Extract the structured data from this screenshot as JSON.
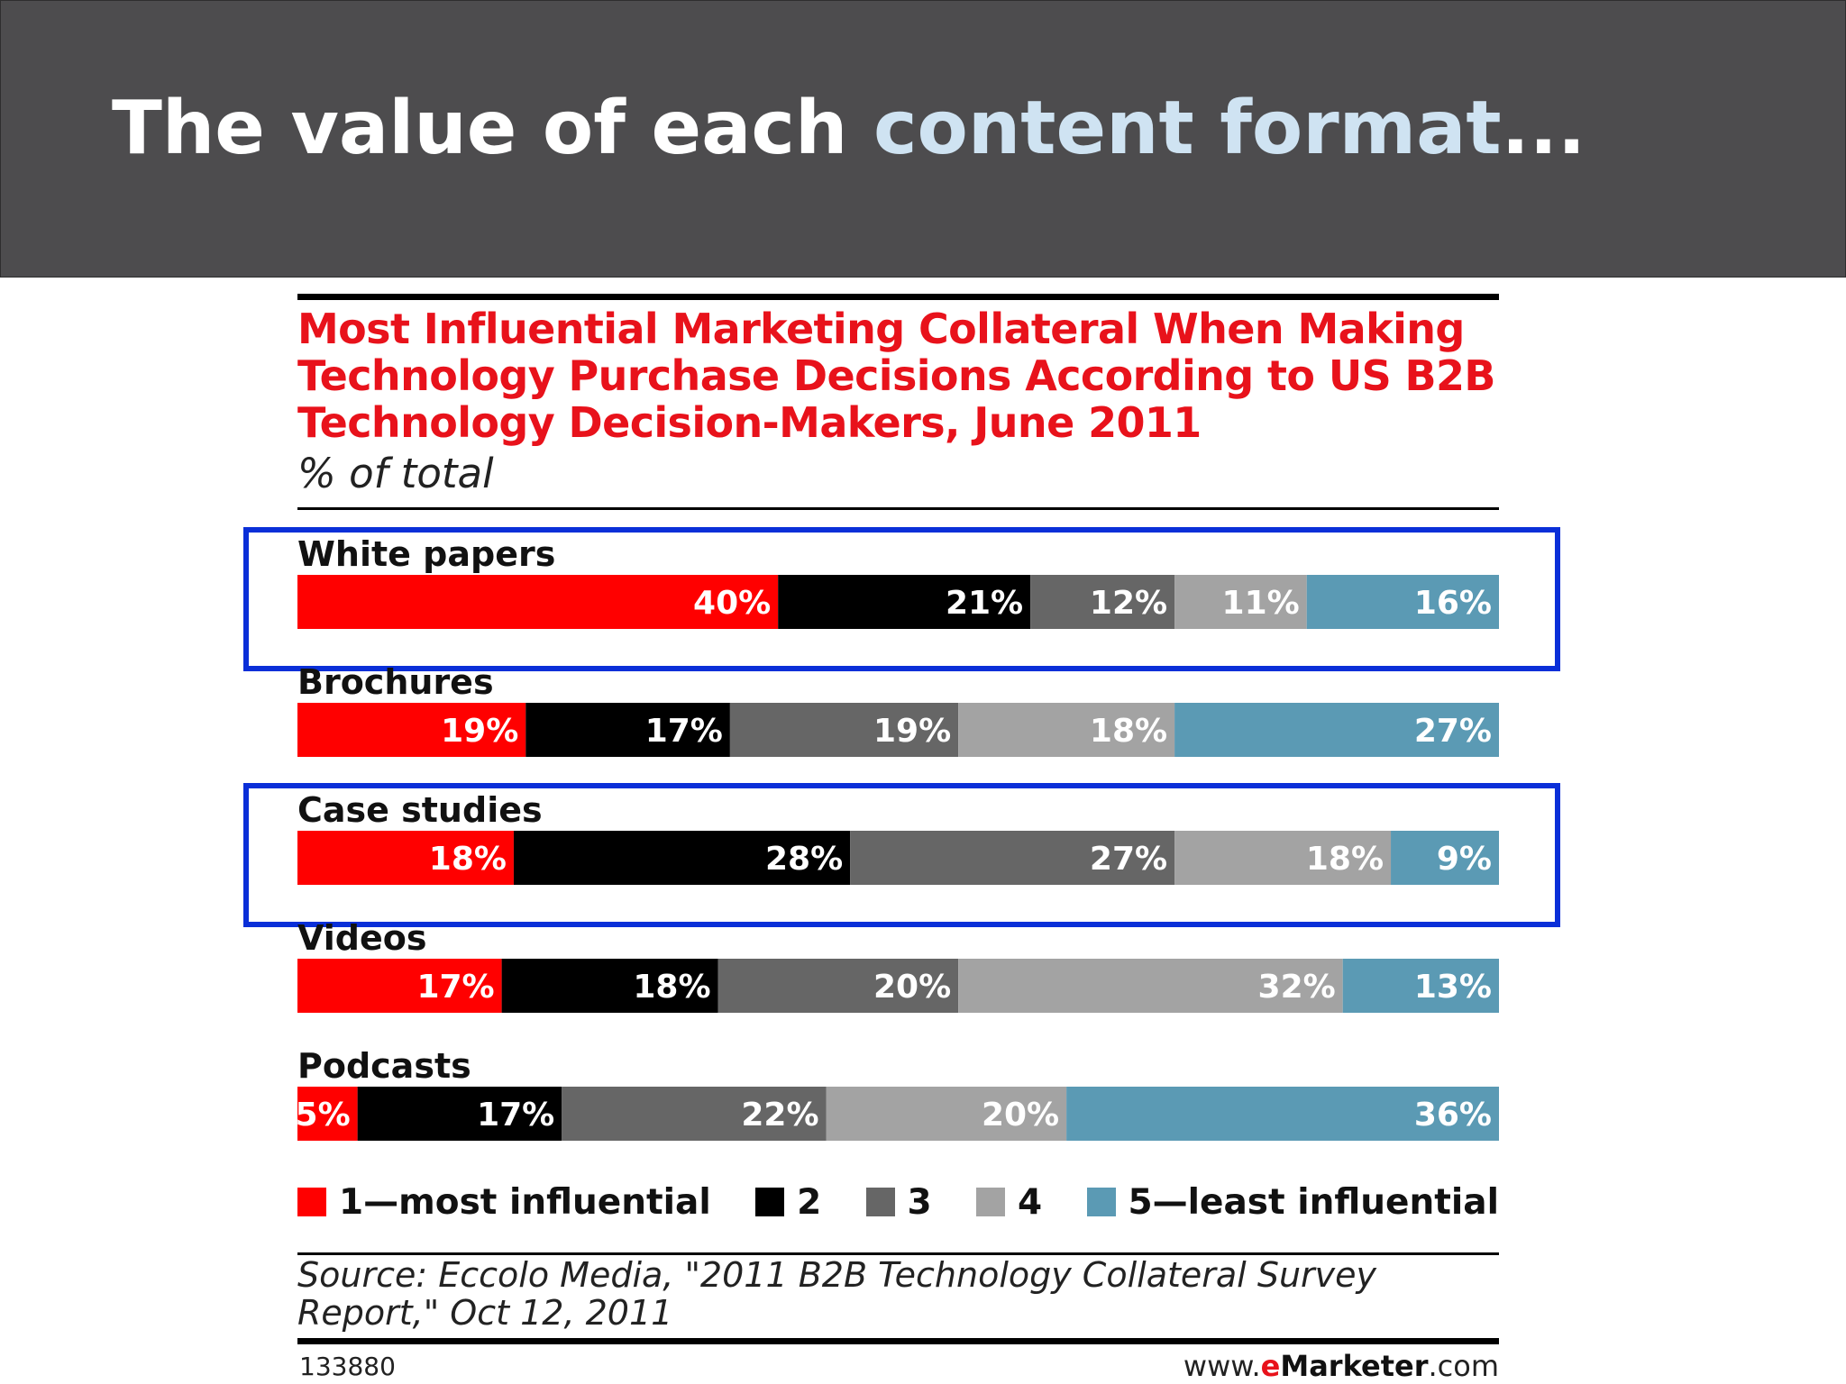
{
  "slide": {
    "title_lead": "The value of each ",
    "title_highlight": "content format",
    "title_tail": "..."
  },
  "chart_data": {
    "type": "bar",
    "stacked": "100%",
    "orientation": "horizontal",
    "title": "Most Influential Marketing Collateral When Making Technology Purchase Decisions According to US B2B Technology Decision-Makers, June 2011",
    "title_lines": [
      "Most Influential Marketing Collateral When Making",
      "Technology Purchase Decisions According to US B2B",
      "Technology Decision-Makers, June 2011"
    ],
    "subtitle": "% of total",
    "categories": [
      "White papers",
      "Brochures",
      "Case studies",
      "Videos",
      "Podcasts"
    ],
    "series": [
      {
        "name": "1—most influential",
        "color": "#ff0000",
        "values": [
          40,
          19,
          18,
          17,
          5
        ]
      },
      {
        "name": "2",
        "color": "#000000",
        "values": [
          21,
          17,
          28,
          18,
          17
        ]
      },
      {
        "name": "3",
        "color": "#666666",
        "values": [
          12,
          19,
          27,
          20,
          22
        ]
      },
      {
        "name": "4",
        "color": "#a3a3a3",
        "values": [
          11,
          18,
          18,
          32,
          20
        ]
      },
      {
        "name": "5—least influential",
        "color": "#5b9ab4",
        "values": [
          16,
          27,
          9,
          13,
          36
        ]
      }
    ],
    "value_suffix": "%",
    "legend_position": "bottom",
    "highlighted_categories": [
      "White papers",
      "Case studies"
    ],
    "highlight_color": "#0a2fd8",
    "source": "Source: Eccolo Media, \"2011 B2B Technology Collateral Survey Report,\" Oct 12, 2011",
    "chart_id": "133880",
    "site": {
      "prefix": "www.",
      "brand_e": "e",
      "brand_rest": "Marketer",
      "suffix": ".com"
    }
  }
}
